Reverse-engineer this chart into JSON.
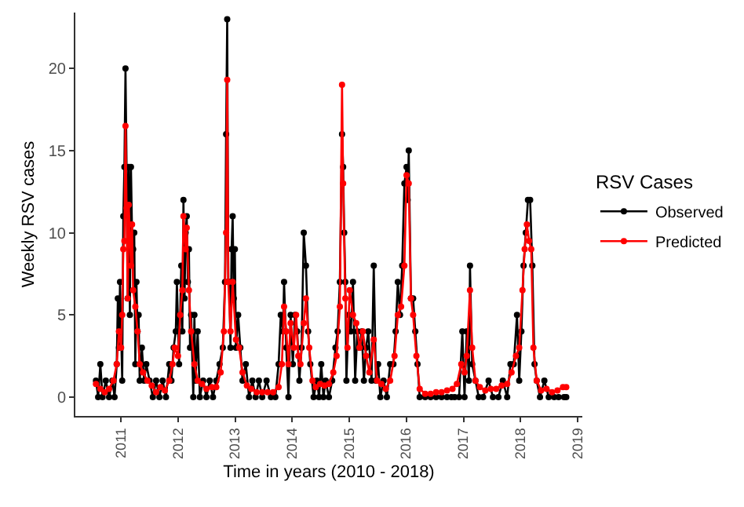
{
  "chart_data": {
    "type": "line",
    "xlabel": "Time in years (2010 - 2018)",
    "ylabel": "Weekly RSV cases",
    "legend_title": "RSV Cases",
    "legend": "right",
    "marker": "circle",
    "line_style": "solid",
    "grid": false,
    "xlim": [
      "2010-03-15",
      "2019-02-01"
    ],
    "xticks": [
      {
        "value": "2011-01-01",
        "label": "2011"
      },
      {
        "value": "2012-01-01",
        "label": "2012"
      },
      {
        "value": "2013-01-01",
        "label": "2013"
      },
      {
        "value": "2014-01-01",
        "label": "2014"
      },
      {
        "value": "2015-01-01",
        "label": "2015"
      },
      {
        "value": "2016-01-01",
        "label": "2016"
      },
      {
        "value": "2017-01-01",
        "label": "2017"
      },
      {
        "value": "2018-01-01",
        "label": "2018"
      },
      {
        "value": "2019-01-01",
        "label": "2019"
      }
    ],
    "ylim": [
      -1.15,
      23.4
    ],
    "yticks": [
      0,
      5,
      10,
      15,
      20
    ],
    "series": [
      {
        "name": "Observed",
        "color": "#000000",
        "x": [
          "2010-07-25",
          "2010-08-08",
          "2010-08-22",
          "2010-09-05",
          "2010-09-26",
          "2010-10-17",
          "2010-11-07",
          "2010-11-21",
          "2010-12-05",
          "2010-12-12",
          "2010-12-19",
          "2010-12-26",
          "2011-01-09",
          "2011-01-16",
          "2011-01-23",
          "2011-01-30",
          "2011-02-06",
          "2011-02-13",
          "2011-02-20",
          "2011-02-27",
          "2011-03-06",
          "2011-03-13",
          "2011-03-20",
          "2011-03-27",
          "2011-04-03",
          "2011-04-10",
          "2011-04-17",
          "2011-04-24",
          "2011-05-01",
          "2011-05-15",
          "2011-05-29",
          "2011-06-12",
          "2011-07-03",
          "2011-07-24",
          "2011-08-14",
          "2011-09-04",
          "2011-09-25",
          "2011-10-16",
          "2011-11-06",
          "2011-11-20",
          "2011-12-04",
          "2011-12-18",
          "2011-12-25",
          "2012-01-08",
          "2012-01-22",
          "2012-01-29",
          "2012-02-05",
          "2012-02-12",
          "2012-02-19",
          "2012-02-26",
          "2012-03-04",
          "2012-03-11",
          "2012-03-18",
          "2012-03-25",
          "2012-04-08",
          "2012-04-15",
          "2012-04-22",
          "2012-05-06",
          "2012-05-20",
          "2012-06-10",
          "2012-07-01",
          "2012-07-22",
          "2012-08-12",
          "2012-09-02",
          "2012-09-23",
          "2012-10-14",
          "2012-10-28",
          "2012-11-04",
          "2012-11-11",
          "2012-11-18",
          "2012-11-25",
          "2012-12-02",
          "2012-12-09",
          "2012-12-16",
          "2012-12-23",
          "2012-12-30",
          "2013-01-06",
          "2013-01-20",
          "2013-02-03",
          "2013-02-17",
          "2013-03-10",
          "2013-03-31",
          "2013-04-21",
          "2013-05-12",
          "2013-06-02",
          "2013-06-23",
          "2013-07-21",
          "2013-08-18",
          "2013-09-15",
          "2013-10-06",
          "2013-10-20",
          "2013-11-03",
          "2013-11-10",
          "2013-11-24",
          "2013-12-08",
          "2013-12-22",
          "2014-01-05",
          "2014-01-19",
          "2014-02-02",
          "2014-02-16",
          "2014-03-02",
          "2014-03-16",
          "2014-03-30",
          "2014-04-13",
          "2014-04-27",
          "2014-05-18",
          "2014-06-08",
          "2014-06-22",
          "2014-07-06",
          "2014-07-20",
          "2014-08-03",
          "2014-08-24",
          "2014-09-14",
          "2014-10-05",
          "2014-10-19",
          "2014-11-02",
          "2014-11-16",
          "2014-11-23",
          "2014-11-30",
          "2014-12-07",
          "2014-12-14",
          "2014-12-28",
          "2015-01-11",
          "2015-01-25",
          "2015-02-08",
          "2015-02-22",
          "2015-03-08",
          "2015-03-22",
          "2015-04-05",
          "2015-04-19",
          "2015-05-03",
          "2015-05-24",
          "2015-06-07",
          "2015-06-21",
          "2015-07-05",
          "2015-07-19",
          "2015-08-09",
          "2015-08-30",
          "2015-09-20",
          "2015-10-11",
          "2015-10-25",
          "2015-11-08",
          "2015-11-22",
          "2015-12-06",
          "2015-12-20",
          "2016-01-03",
          "2016-01-10",
          "2016-01-17",
          "2016-01-31",
          "2016-02-14",
          "2016-02-28",
          "2016-03-13",
          "2016-03-27",
          "2016-05-01",
          "2016-06-05",
          "2016-07-10",
          "2016-08-14",
          "2016-09-18",
          "2016-10-16",
          "2016-11-06",
          "2016-12-04",
          "2016-12-25",
          "2017-01-08",
          "2017-01-22",
          "2017-02-05",
          "2017-02-12",
          "2017-02-26",
          "2017-03-19",
          "2017-04-09",
          "2017-05-07",
          "2017-06-11",
          "2017-07-09",
          "2017-08-13",
          "2017-09-10",
          "2017-10-08",
          "2017-10-29",
          "2017-11-19",
          "2017-12-10",
          "2017-12-24",
          "2018-01-07",
          "2018-01-21",
          "2018-02-04",
          "2018-02-18",
          "2018-03-04",
          "2018-03-18",
          "2018-04-01",
          "2018-04-15",
          "2018-05-06",
          "2018-06-03",
          "2018-07-01",
          "2018-08-05",
          "2018-09-02",
          "2018-10-07",
          "2018-10-21"
        ],
        "values": [
          1,
          0,
          2,
          0,
          1,
          0,
          1,
          0,
          2,
          6,
          3,
          7,
          1,
          11,
          14,
          20,
          14,
          6,
          14,
          5,
          14,
          10,
          9,
          10,
          2,
          7,
          4,
          5,
          1,
          3,
          1,
          2,
          1,
          0,
          1,
          0,
          1,
          0,
          2,
          1,
          3,
          4,
          7,
          2,
          8,
          4,
          12,
          6,
          10,
          11,
          7,
          9,
          3,
          5,
          0,
          5,
          1,
          4,
          0,
          1,
          0,
          1,
          0,
          1,
          2,
          3,
          7,
          16,
          23,
          7,
          7,
          3,
          9,
          11,
          6,
          9,
          3,
          5,
          3,
          1,
          2,
          0,
          1,
          0,
          1,
          0,
          1,
          0,
          0,
          2,
          5,
          4,
          7,
          3,
          0,
          5,
          2,
          5,
          4,
          1,
          3,
          10,
          8,
          4,
          2,
          0,
          1,
          0,
          2,
          0,
          1,
          0,
          1,
          3,
          4,
          7,
          16,
          14,
          10,
          7,
          1,
          5,
          4,
          7,
          1,
          4,
          3,
          4,
          1,
          3,
          4,
          1,
          8,
          1,
          2,
          0,
          1,
          0,
          2,
          2,
          4,
          7,
          5,
          8,
          13,
          14,
          12,
          15,
          6,
          6,
          4,
          2,
          0,
          0,
          0,
          0,
          0,
          0,
          0,
          0,
          0,
          4,
          0,
          4,
          1,
          8,
          2,
          1,
          0,
          0,
          1,
          0,
          0,
          1,
          0,
          2,
          2,
          5,
          1,
          4,
          8,
          10,
          12,
          12,
          8,
          2,
          1,
          0,
          1,
          0,
          0,
          0,
          0,
          0
        ]
      },
      {
        "name": "Predicted",
        "color": "#ff0000",
        "x": [
          "2010-07-25",
          "2010-08-22",
          "2010-09-19",
          "2010-10-17",
          "2010-11-14",
          "2010-12-05",
          "2010-12-19",
          "2011-01-02",
          "2011-01-09",
          "2011-01-16",
          "2011-01-23",
          "2011-01-30",
          "2011-02-06",
          "2011-02-13",
          "2011-02-20",
          "2011-03-06",
          "2011-03-13",
          "2011-03-20",
          "2011-04-03",
          "2011-04-17",
          "2011-05-01",
          "2011-05-22",
          "2011-06-19",
          "2011-07-17",
          "2011-08-14",
          "2011-09-11",
          "2011-10-09",
          "2011-11-06",
          "2011-11-27",
          "2011-12-11",
          "2012-01-01",
          "2012-01-15",
          "2012-01-29",
          "2012-02-05",
          "2012-02-19",
          "2012-02-26",
          "2012-03-11",
          "2012-03-25",
          "2012-04-15",
          "2012-05-06",
          "2012-06-03",
          "2012-07-01",
          "2012-08-05",
          "2012-09-02",
          "2012-09-30",
          "2012-10-21",
          "2012-11-04",
          "2012-11-11",
          "2012-11-18",
          "2012-12-02",
          "2012-12-16",
          "2013-01-06",
          "2013-01-27",
          "2013-02-17",
          "2013-03-17",
          "2013-04-14",
          "2013-05-19",
          "2013-06-23",
          "2013-07-28",
          "2013-09-01",
          "2013-10-06",
          "2013-10-27",
          "2013-11-10",
          "2013-11-24",
          "2013-12-08",
          "2013-12-22",
          "2014-01-12",
          "2014-01-26",
          "2014-02-09",
          "2014-02-23",
          "2014-03-16",
          "2014-03-30",
          "2014-04-20",
          "2014-05-11",
          "2014-06-01",
          "2014-06-29",
          "2014-07-27",
          "2014-08-24",
          "2014-09-21",
          "2014-10-12",
          "2014-11-02",
          "2014-11-16",
          "2014-11-23",
          "2014-12-07",
          "2014-12-21",
          "2015-01-04",
          "2015-01-25",
          "2015-02-15",
          "2015-03-08",
          "2015-03-29",
          "2015-04-19",
          "2015-05-10",
          "2015-06-07",
          "2015-06-28",
          "2015-07-26",
          "2015-08-23",
          "2015-09-20",
          "2015-10-18",
          "2015-11-08",
          "2015-11-29",
          "2015-12-20",
          "2016-01-03",
          "2016-01-17",
          "2016-01-31",
          "2016-02-14",
          "2016-03-06",
          "2016-03-27",
          "2016-05-01",
          "2016-06-05",
          "2016-07-10",
          "2016-08-14",
          "2016-09-18",
          "2016-10-23",
          "2016-11-20",
          "2016-12-18",
          "2017-01-08",
          "2017-01-22",
          "2017-02-12",
          "2017-02-26",
          "2017-03-19",
          "2017-04-16",
          "2017-05-21",
          "2017-06-25",
          "2017-07-30",
          "2017-09-03",
          "2017-10-08",
          "2017-11-05",
          "2017-12-03",
          "2017-12-24",
          "2018-01-14",
          "2018-01-28",
          "2018-02-11",
          "2018-02-25",
          "2018-03-11",
          "2018-03-25",
          "2018-04-15",
          "2018-05-13",
          "2018-06-17",
          "2018-07-22",
          "2018-08-26",
          "2018-09-30",
          "2018-10-21"
        ],
        "values": [
          0.8,
          0.5,
          0.3,
          0.5,
          1.0,
          2.0,
          4.0,
          3.0,
          5.0,
          9.0,
          9.5,
          16.5,
          11.5,
          6.0,
          11.7,
          8.0,
          10.5,
          6.5,
          5.5,
          4.0,
          2.0,
          1.5,
          1.0,
          0.7,
          0.3,
          0.6,
          0.4,
          1.0,
          2.0,
          3.0,
          2.5,
          5.0,
          6.5,
          11.0,
          9.0,
          10.3,
          6.5,
          4.0,
          2.0,
          1.0,
          0.8,
          0.5,
          0.6,
          0.6,
          1.5,
          4.0,
          10.0,
          19.3,
          7.0,
          4.0,
          7.0,
          3.5,
          3.0,
          1.5,
          0.7,
          0.5,
          0.3,
          0.3,
          0.3,
          0.3,
          0.6,
          2.0,
          5.5,
          4.0,
          2.0,
          4.5,
          3.0,
          5.0,
          2.5,
          2.0,
          4.5,
          6.0,
          3.0,
          1.0,
          0.6,
          0.8,
          0.7,
          0.8,
          1.5,
          2.5,
          5.5,
          19.0,
          13.0,
          6.0,
          3.0,
          6.5,
          5.0,
          4.5,
          3.0,
          4.0,
          2.5,
          1.5,
          3.5,
          1.0,
          0.8,
          0.5,
          1.0,
          2.5,
          5.0,
          5.5,
          8.0,
          13.5,
          13.0,
          6.0,
          5.0,
          2.5,
          0.5,
          0.2,
          0.2,
          0.3,
          0.3,
          0.4,
          0.5,
          0.8,
          2.0,
          1.5,
          2.5,
          6.5,
          3.0,
          1.0,
          0.6,
          0.4,
          0.5,
          0.5,
          0.7,
          0.8,
          1.5,
          2.5,
          3.0,
          6.5,
          9.0,
          10.5,
          9.5,
          9.0,
          3.0,
          1.0,
          0.4,
          0.5,
          0.3,
          0.4,
          0.6,
          0.6
        ]
      }
    ]
  }
}
